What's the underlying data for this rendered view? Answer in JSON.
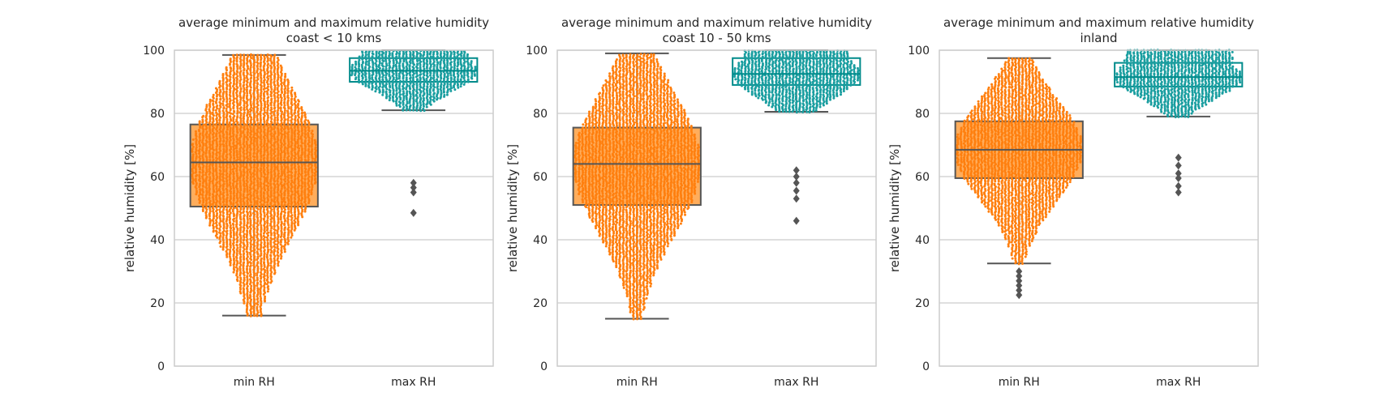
{
  "colors": {
    "min_rh_box": "#ffad5c",
    "min_rh_points": "#ff7f0e",
    "max_rh_box": "#008b8b",
    "max_rh_points": "#1a9ea0",
    "box_line": "#555555",
    "grid": "#cccccc",
    "frame": "#cccccc",
    "outlier": "#555555"
  },
  "chart_data": [
    {
      "type": "box",
      "overlay": "swarm",
      "title": [
        "average minimum and maximum relative humidity",
        "coast < 10 kms"
      ],
      "xlabel": "",
      "ylabel": "relative humidity [%]",
      "ylim": [
        0,
        100
      ],
      "yticks": [
        "0",
        "20",
        "40",
        "60",
        "80",
        "100"
      ],
      "grid": "horizontal",
      "categories": [
        "min RH",
        "max RH"
      ],
      "boxes": [
        {
          "name": "min RH",
          "whisker_low": 16,
          "q1": 50.5,
          "median": 64.5,
          "q3": 76.5,
          "whisker_high": 98.5,
          "outliers": []
        },
        {
          "name": "max RH",
          "whisker_low": 81,
          "q1": 90,
          "median": 93.5,
          "q3": 97.5,
          "whisker_high": 100,
          "outliers": [
            48.5,
            55,
            56.5,
            58
          ]
        }
      ]
    },
    {
      "type": "box",
      "overlay": "swarm",
      "title": [
        "average minimum and maximum relative humidity",
        "coast 10 - 50 kms"
      ],
      "xlabel": "",
      "ylabel": "relative humidity [%]",
      "ylim": [
        0,
        100
      ],
      "yticks": [
        "0",
        "20",
        "40",
        "60",
        "80",
        "100"
      ],
      "grid": "horizontal",
      "categories": [
        "min RH",
        "max RH"
      ],
      "boxes": [
        {
          "name": "min RH",
          "whisker_low": 15,
          "q1": 51,
          "median": 64,
          "q3": 75.5,
          "whisker_high": 99,
          "outliers": []
        },
        {
          "name": "max RH",
          "whisker_low": 80.5,
          "q1": 89,
          "median": 92.5,
          "q3": 97.5,
          "whisker_high": 100,
          "outliers": [
            46,
            53,
            55.5,
            58,
            60,
            62
          ]
        }
      ]
    },
    {
      "type": "box",
      "overlay": "swarm",
      "title": [
        "average minimum and maximum relative humidity",
        "inland"
      ],
      "xlabel": "",
      "ylabel": "relative humidity [%]",
      "ylim": [
        0,
        100
      ],
      "yticks": [
        "0",
        "20",
        "40",
        "60",
        "80",
        "100"
      ],
      "grid": "horizontal",
      "categories": [
        "min RH",
        "max RH"
      ],
      "boxes": [
        {
          "name": "min RH",
          "whisker_low": 32.5,
          "q1": 59.5,
          "median": 68.5,
          "q3": 77.5,
          "whisker_high": 97.5,
          "outliers": [
            22.5,
            24,
            25.5,
            27,
            28.5,
            30
          ]
        },
        {
          "name": "max RH",
          "whisker_low": 79,
          "q1": 88.5,
          "median": 91.5,
          "q3": 96,
          "whisker_high": 100,
          "outliers": [
            55,
            57,
            59.5,
            61,
            63.5,
            66
          ]
        }
      ]
    }
  ]
}
